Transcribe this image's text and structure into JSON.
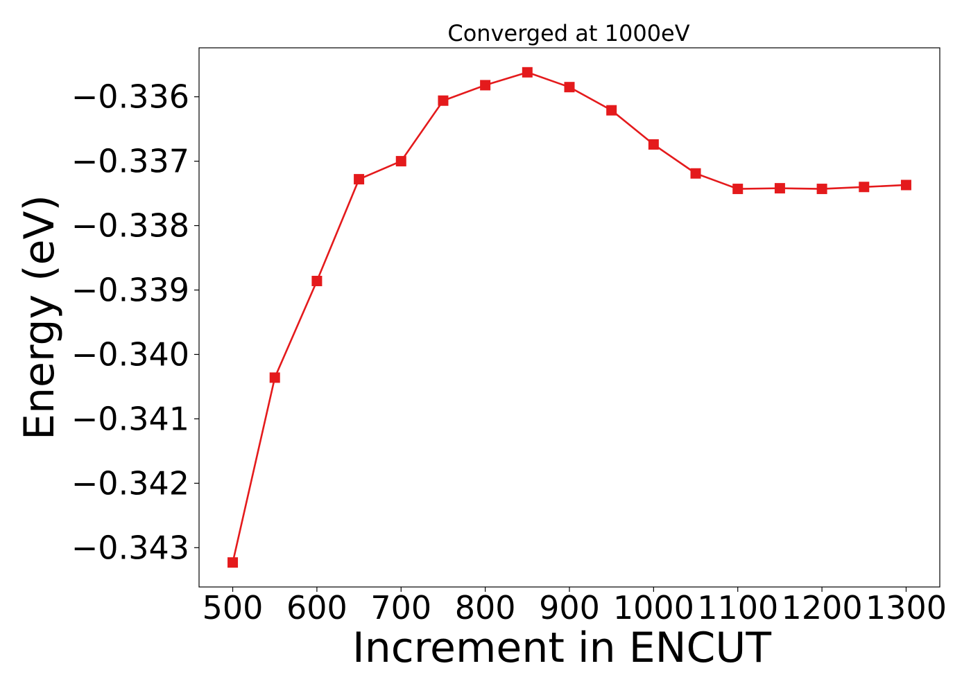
{
  "chart_data": {
    "type": "line",
    "title": "Converged at 1000eV",
    "xlabel": "Increment in ENCUT",
    "ylabel": "Energy (eV)",
    "x": [
      500,
      550,
      600,
      650,
      700,
      750,
      800,
      850,
      900,
      950,
      1000,
      1050,
      1100,
      1150,
      1200,
      1250,
      1300
    ],
    "series": [
      {
        "name": "",
        "values": [
          -0.34323,
          -0.34036,
          -0.33886,
          -0.33728,
          -0.337,
          -0.33606,
          -0.33582,
          -0.33562,
          -0.33585,
          -0.33621,
          -0.33674,
          -0.33719,
          -0.33743,
          -0.33742,
          -0.33743,
          -0.3374,
          -0.33737
        ],
        "color": "#e41a1c",
        "marker": "square"
      }
    ],
    "xticks": [
      500,
      600,
      700,
      800,
      900,
      1000,
      1100,
      1200,
      1300
    ],
    "yticks": [
      -0.343,
      -0.342,
      -0.341,
      -0.34,
      -0.339,
      -0.338,
      -0.337,
      -0.336
    ],
    "ytick_labels": [
      "−0.343",
      "−0.342",
      "−0.341",
      "−0.340",
      "−0.339",
      "−0.338",
      "−0.337",
      "−0.336"
    ],
    "xlim": [
      460,
      1340
    ],
    "ylim": [
      -0.34361,
      -0.33524
    ],
    "grid": false,
    "legend": "none"
  }
}
